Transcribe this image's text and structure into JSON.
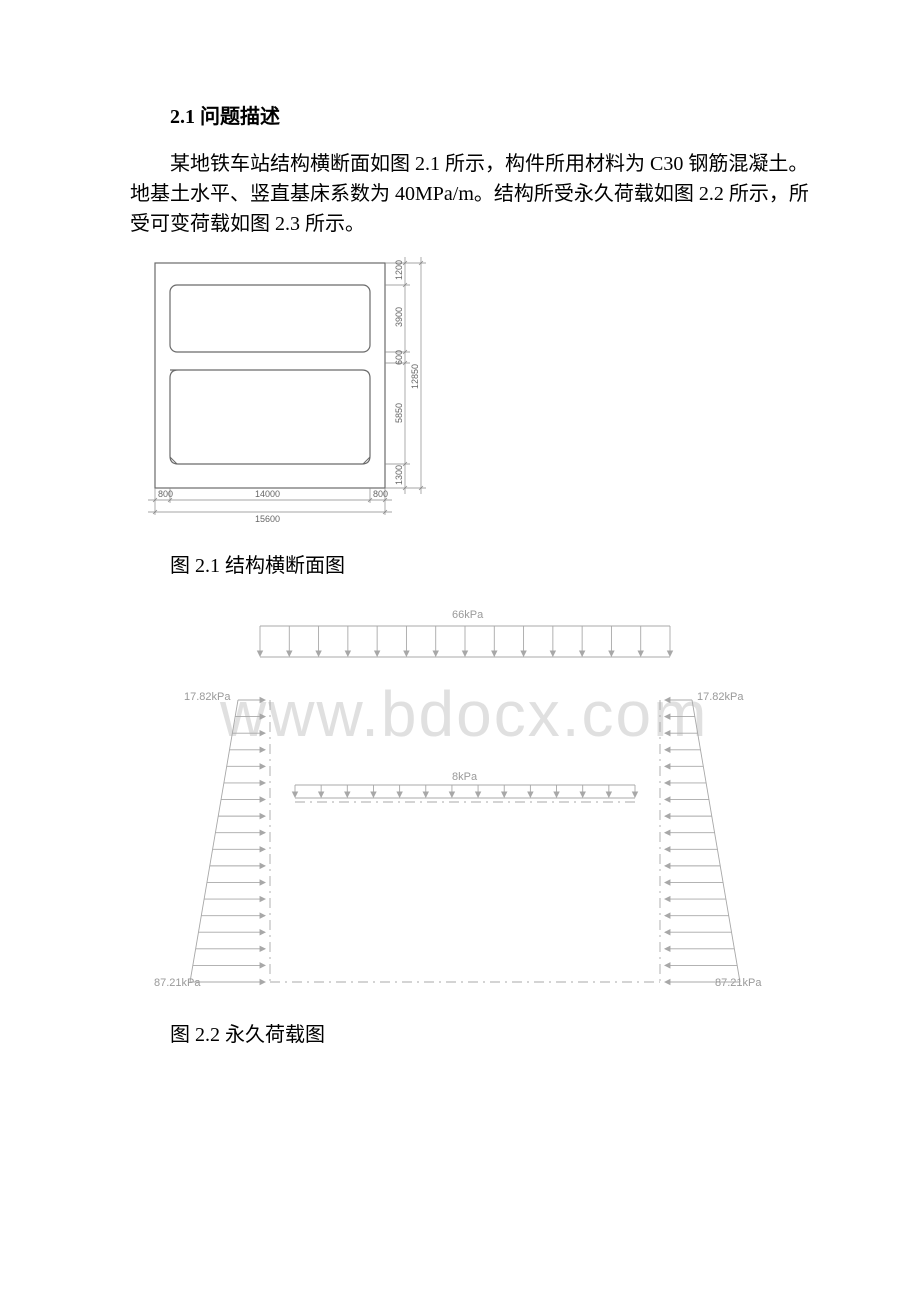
{
  "section_number": "2.1",
  "section_title": "问题描述",
  "paragraph_text": "某地铁车站结构横断面如图 2.1 所示，构件所用材料为 C30 钢筋混凝土。地基土水平、竖直基床系数为 40MPa/m。结构所受永久荷载如图 2.2 所示，所受可变荷载如图 2.3 所示。",
  "fig1": {
    "caption": "图 2.1 结构横断面图",
    "dims": {
      "left_wall": "800",
      "span": "14000",
      "right_wall": "800",
      "total_width": "15600",
      "top_slab": "1200",
      "upper_clear": "3900",
      "mid_slab": "600",
      "lower_clear": "5850",
      "bottom_slab": "1300",
      "total_height": "12850"
    },
    "colors": {
      "line": "#6a6a6a",
      "thin": "#888888",
      "text": "#666666"
    }
  },
  "fig2": {
    "caption": "图 2.2 永久荷载图",
    "labels": {
      "top_load": "66kPa",
      "mid_load": "8kPa",
      "side_top": "17.82kPa",
      "side_bot": "87.21kPa"
    },
    "colors": {
      "line": "#a8a8a8",
      "text": "#9a9a9a"
    }
  },
  "watermark": "www.bdocx.com"
}
